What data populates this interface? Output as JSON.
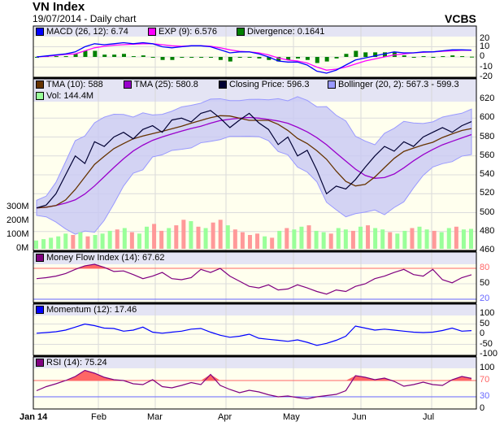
{
  "header": {
    "title": "VN Index",
    "subtitle": "19/07/2014 - Daily chart",
    "brand": "VCBS"
  },
  "legends": {
    "macd": {
      "label": "MACD (26, 12): 6.74",
      "color": "#0000ff"
    },
    "exp": {
      "label": "EXP (9): 6.576",
      "color": "#ff00ff"
    },
    "div": {
      "label": "Divergence: 0.1641",
      "color": "#008000"
    },
    "tma10": {
      "label": "TMA (10): 588",
      "color": "#663300"
    },
    "tma25": {
      "label": "TMA (25): 580.8",
      "color": "#9900cc"
    },
    "close": {
      "label": "Closing Price: 596.3",
      "color": "#000033"
    },
    "boll": {
      "label": "Bollinger (20, 2): 567.3 - 599.3",
      "color": "#9999ff"
    },
    "vol": {
      "label": "Vol: 144.4M",
      "color": "#99ff99"
    },
    "mfi": {
      "label": "Money Flow Index (14): 67.62",
      "color": "#800080"
    },
    "mom": {
      "label": "Momentum (12): 17.46",
      "color": "#0000ff"
    },
    "rsi": {
      "label": "RSI (14): 75.24",
      "color": "#800080"
    }
  },
  "chart_data": {
    "type": "line",
    "x_labels": [
      "Jan 14",
      "Feb",
      "Mar",
      "Apr",
      "May",
      "Jun",
      "Jul"
    ],
    "macd_axis": [
      "20",
      "10",
      "0",
      "-10",
      "-20"
    ],
    "price_axis": [
      "620",
      "600",
      "580",
      "560",
      "540",
      "520",
      "500",
      "480",
      "460"
    ],
    "volume_axis": [
      "300M",
      "200M",
      "100M",
      "0M"
    ],
    "mfi_axis": [
      "80",
      "50",
      "20"
    ],
    "mom_axis": [
      "100",
      "50",
      "0",
      "-50",
      "-100"
    ],
    "rsi_axis": [
      "100",
      "70",
      "30",
      "0"
    ],
    "close": [
      505,
      508,
      520,
      540,
      560,
      552,
      575,
      570,
      580,
      585,
      578,
      588,
      592,
      585,
      598,
      600,
      596,
      605,
      608,
      600,
      590,
      598,
      605,
      595,
      588,
      572,
      580,
      560,
      566,
      545,
      520,
      528,
      525,
      535,
      548,
      560,
      570,
      565,
      575,
      570,
      580,
      585,
      590,
      585,
      592,
      596.3
    ],
    "macd": [
      0,
      1,
      2,
      3,
      5,
      10,
      13,
      12,
      13,
      14,
      13,
      14,
      13,
      10,
      9,
      10,
      11,
      11,
      10,
      7,
      4,
      5,
      5,
      3,
      0,
      -4,
      -5,
      -5,
      -8,
      -14,
      -16,
      -13,
      -8,
      -3,
      -1,
      1,
      3,
      5,
      4,
      4,
      5,
      5,
      6,
      7,
      7,
      6.74
    ],
    "exp": [
      0,
      0.5,
      1.5,
      2.5,
      3,
      6,
      9,
      10.5,
      11.5,
      12,
      12.5,
      13,
      13,
      12,
      11,
      10.5,
      11,
      11,
      10.5,
      9,
      7,
      5.5,
      5,
      4,
      2,
      -1,
      -3,
      -4,
      -6,
      -10,
      -13,
      -12,
      -10,
      -7,
      -4,
      -2,
      0,
      2,
      3,
      4,
      4.5,
      5,
      5.5,
      6,
      6.5,
      6.576
    ],
    "mfi": [
      60,
      62,
      65,
      70,
      78,
      85,
      88,
      82,
      74,
      75,
      68,
      60,
      65,
      72,
      60,
      58,
      62,
      78,
      72,
      80,
      65,
      55,
      45,
      42,
      48,
      38,
      40,
      48,
      42,
      35,
      30,
      38,
      35,
      45,
      50,
      60,
      65,
      72,
      78,
      68,
      65,
      78,
      58,
      52,
      62,
      67.62
    ],
    "momentum": [
      5,
      8,
      12,
      20,
      35,
      50,
      42,
      30,
      28,
      15,
      20,
      35,
      10,
      5,
      10,
      15,
      25,
      28,
      10,
      -5,
      -15,
      -10,
      0,
      -20,
      -25,
      -30,
      -35,
      -28,
      -40,
      -55,
      -45,
      -30,
      -10,
      40,
      30,
      20,
      25,
      20,
      15,
      10,
      8,
      10,
      18,
      30,
      15,
      17.46
    ],
    "rsi": [
      45,
      55,
      62,
      70,
      80,
      95,
      88,
      78,
      72,
      70,
      62,
      60,
      72,
      55,
      52,
      58,
      65,
      60,
      85,
      58,
      48,
      40,
      46,
      42,
      35,
      30,
      32,
      28,
      25,
      30,
      33,
      36,
      45,
      82,
      78,
      72,
      76,
      68,
      56,
      60,
      66,
      60,
      58,
      72,
      80,
      75.24
    ],
    "volume_m": [
      60,
      70,
      80,
      90,
      110,
      100,
      120,
      90,
      100,
      110,
      130,
      140,
      150,
      120,
      110,
      160,
      180,
      130,
      150,
      170,
      210,
      200,
      160,
      150,
      190,
      210,
      170,
      140,
      120,
      100,
      110,
      90,
      80,
      130,
      150,
      140,
      160,
      170,
      130,
      120,
      110,
      150,
      140,
      130,
      160,
      170,
      150,
      140,
      120,
      110,
      130,
      150,
      160,
      140,
      130,
      120,
      150,
      160,
      140,
      144.4
    ],
    "volume_up": [
      1,
      1,
      1,
      1,
      1,
      0,
      1,
      0,
      1,
      1,
      1,
      0,
      1,
      0,
      1,
      1,
      0,
      0,
      1,
      0,
      0,
      1,
      0,
      1,
      0,
      0,
      1,
      0,
      0,
      0,
      0,
      1,
      0,
      1,
      0,
      1,
      1,
      0,
      1,
      1,
      0,
      1,
      1,
      0,
      1,
      0,
      1,
      1,
      0,
      1,
      1,
      0,
      1,
      1,
      0,
      1,
      1,
      0,
      1,
      1
    ]
  }
}
